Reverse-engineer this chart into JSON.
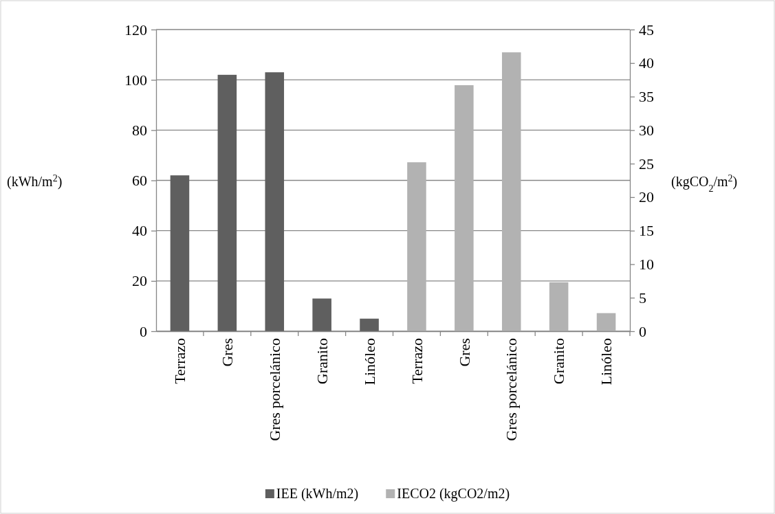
{
  "chart_data": {
    "type": "bar",
    "categories": [
      "Terrazo",
      "Gres",
      "Gres porcelánico",
      "Granito",
      "Linóleo",
      "Terrazo",
      "Gres",
      "Gres porcelánico",
      "Granito",
      "Linóleo"
    ],
    "series": [
      {
        "name": "IEE (kWh/m2)",
        "color": "#5f5f5f",
        "values": [
          62,
          102,
          103,
          13,
          5,
          null,
          null,
          null,
          null,
          null
        ]
      },
      {
        "name": "IECO2 (kgCO2/m2)",
        "color": "#b2b2b2",
        "axis": "y2",
        "values": [
          null,
          null,
          null,
          null,
          null,
          25.2,
          36.7,
          41.6,
          7.3,
          2.7
        ]
      }
    ],
    "ylabel": "(kWh/m$^{2}$)",
    "y2label": "(kgCO$_{2}$/m$^{2}$)",
    "ylim": [
      0,
      120
    ],
    "yticks": [
      0,
      20,
      40,
      60,
      80,
      100,
      120
    ],
    "y2lim": [
      0,
      45
    ],
    "y2ticks": [
      0,
      5,
      10,
      15,
      20,
      25,
      30,
      35,
      40,
      45
    ],
    "grid": "y",
    "legend": "bottom"
  }
}
